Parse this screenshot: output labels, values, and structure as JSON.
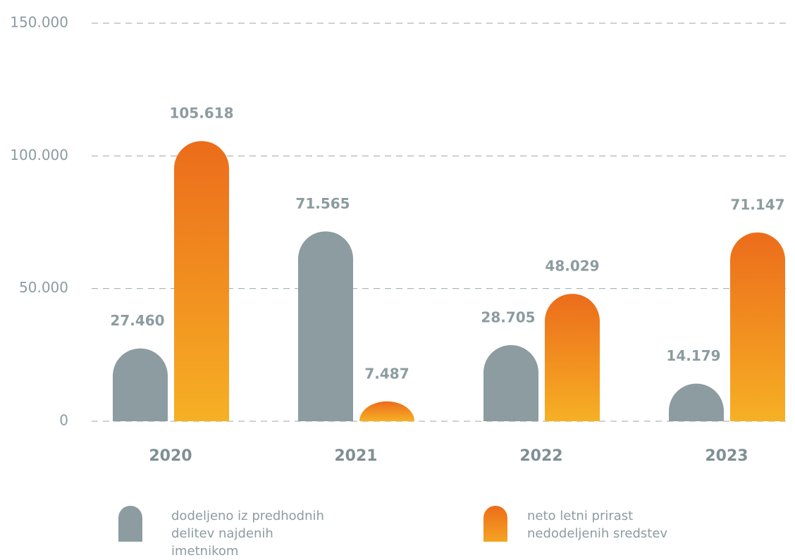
{
  "chart_data": {
    "type": "bar",
    "categories": [
      "2020",
      "2021",
      "2022",
      "2023"
    ],
    "series": [
      {
        "name": "dodeljeno iz predhodnih delitev najdenih imetnikom",
        "color": "#8c9ca0",
        "values": [
          27460,
          71565,
          28705,
          14179
        ],
        "value_labels": [
          "27.460",
          "71.565",
          "28.705",
          "14.179"
        ]
      },
      {
        "name": "neto letni prirast nedodeljenih sredstev",
        "color": "#ec6c1b",
        "values": [
          105618,
          7487,
          48029,
          71147
        ],
        "value_labels": [
          "105.618",
          "7.487",
          "48.029",
          "71.147"
        ]
      }
    ],
    "ylim": [
      0,
      150000
    ],
    "yticks": [
      0,
      {
        "value": 50000,
        "label": "50.000"
      },
      {
        "value": 100000,
        "label": "100.000"
      },
      {
        "value": 150000,
        "label": "150.000"
      }
    ],
    "grid": true
  }
}
